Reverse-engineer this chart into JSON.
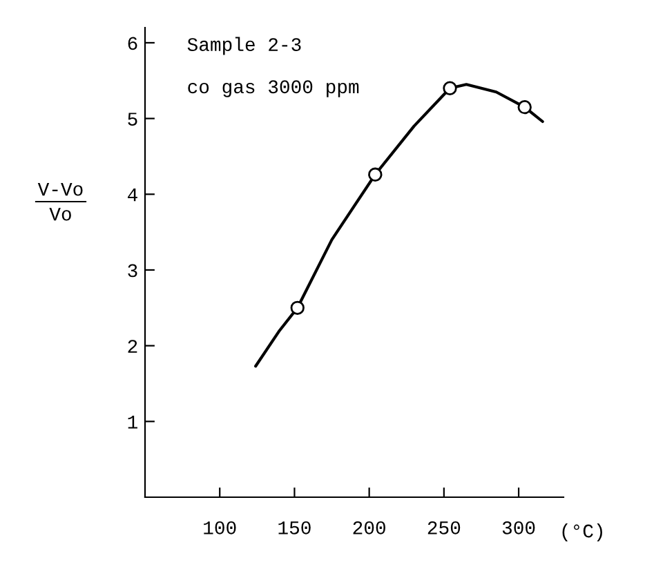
{
  "chart_data": {
    "type": "line",
    "xlabel": "(°C)",
    "ylabel": "V-Vo\nVo",
    "annotations": [
      "Sample 2-3",
      "co gas 3000 ppm"
    ],
    "xlim": [
      50,
      330
    ],
    "ylim": [
      0,
      6.2
    ],
    "xticks": [
      100,
      150,
      200,
      250,
      300
    ],
    "yticks": [
      1,
      2,
      3,
      4,
      5,
      6
    ],
    "grid": false,
    "series": [
      {
        "color": "#000000",
        "marker": "none",
        "x": [
          124,
          140,
          152,
          175,
          204,
          230,
          254,
          265,
          285,
          304,
          316
        ],
        "values": [
          1.73,
          2.2,
          2.5,
          3.4,
          4.26,
          4.9,
          5.4,
          5.45,
          5.35,
          5.15,
          4.96
        ]
      },
      {
        "type": "scatter",
        "color": "#000000",
        "marker": "circle",
        "x": [
          152,
          204,
          254,
          304
        ],
        "values": [
          2.5,
          4.26,
          5.4,
          5.15
        ]
      }
    ]
  }
}
